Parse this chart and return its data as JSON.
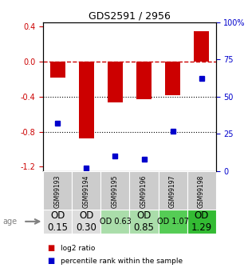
{
  "title": "GDS2591 / 2956",
  "samples": [
    "GSM99193",
    "GSM99194",
    "GSM99195",
    "GSM99196",
    "GSM99197",
    "GSM99198"
  ],
  "log2_ratios": [
    -0.18,
    -0.88,
    -0.47,
    -0.43,
    -0.38,
    0.35
  ],
  "percentile_ranks": [
    32,
    2,
    10,
    8,
    27,
    62
  ],
  "bar_color": "#cc0000",
  "dot_color": "#0000cc",
  "ylim": [
    -1.25,
    0.45
  ],
  "yticks_left": [
    0.4,
    0.0,
    -0.4,
    -0.8,
    -1.2
  ],
  "yticks_right": [
    100,
    75,
    50,
    25,
    0
  ],
  "age_labels": [
    "OD\n0.15",
    "OD\n0.30",
    "OD 0.63",
    "OD\n0.85",
    "OD 1.07",
    "OD\n1.29"
  ],
  "age_bg_colors": [
    "#dddddd",
    "#dddddd",
    "#aaddaa",
    "#aaddaa",
    "#55cc55",
    "#33bb33"
  ],
  "age_font_sizes": [
    8.5,
    8.5,
    7.0,
    8.5,
    7.0,
    8.5
  ],
  "sample_bg_color": "#cccccc",
  "dashed_line_color": "#cc0000",
  "dotted_line_color": "#000000",
  "legend_bar_color": "#cc0000",
  "legend_dot_color": "#0000cc"
}
